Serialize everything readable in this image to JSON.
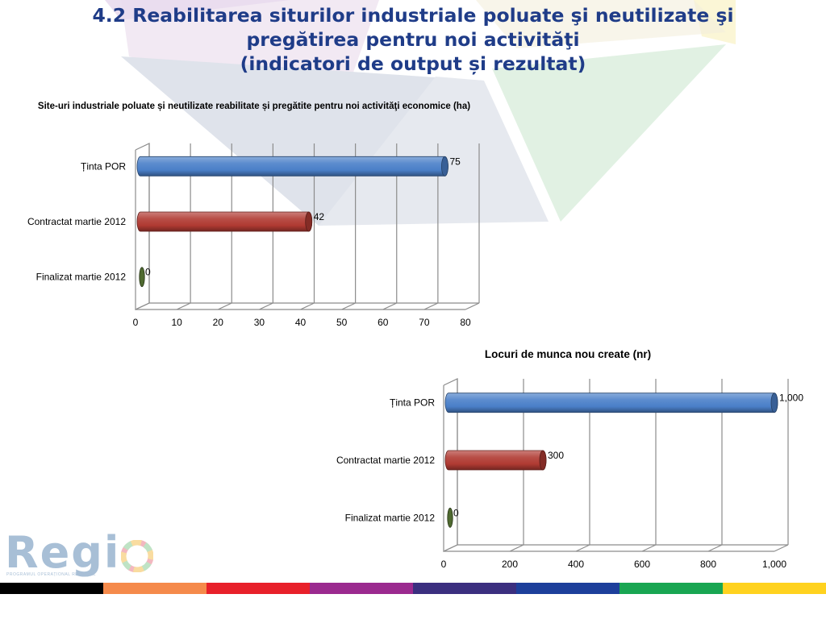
{
  "slide": {
    "title_lines": [
      "4.2 Reabilitarea siturilor industriale poluate şi neutilizate şi",
      "pregătirea pentru noi activităţi",
      "(indicatori de output și rezultat)"
    ]
  },
  "logo": {
    "text": "Regi",
    "subtitle": "PROGRAMUL OPERAȚIONAL REGIONAL"
  },
  "strip_colors": [
    "#000000",
    "#f58a4b",
    "#e8202a",
    "#9b2a8f",
    "#3b2f7f",
    "#1d3f9b",
    "#19a652",
    "#ffd21f"
  ],
  "chart_data": [
    {
      "type": "bar",
      "orientation": "horizontal",
      "title": "Site-uri industriale poluate și neutilizate reabilitate și pregătite pentru noi activităţi economice (ha)",
      "categories": [
        "Ținta POR",
        "Contractat martie 2012",
        "Finalizat martie 2012"
      ],
      "values": [
        75,
        42,
        0
      ],
      "value_labels": [
        "75",
        "42",
        "0"
      ],
      "colors": [
        "#4a7fc8",
        "#b03a32",
        "#4f6a30"
      ],
      "xlim": [
        0,
        80
      ],
      "ticks": [
        0,
        10,
        20,
        30,
        40,
        50,
        60,
        70,
        80
      ],
      "tick_labels": [
        "0",
        "10",
        "20",
        "30",
        "40",
        "50",
        "60",
        "70",
        "80"
      ],
      "grid": true
    },
    {
      "type": "bar",
      "orientation": "horizontal",
      "title": "Locuri de  munca nou create (nr)",
      "categories": [
        "Ținta POR",
        "Contractat martie 2012",
        "Finalizat martie 2012"
      ],
      "values": [
        1000,
        300,
        0
      ],
      "value_labels": [
        "1,000",
        "300",
        "0"
      ],
      "colors": [
        "#4a7fc8",
        "#b03a32",
        "#4f6a30"
      ],
      "xlim": [
        0,
        1000
      ],
      "ticks": [
        0,
        200,
        400,
        600,
        800,
        1000
      ],
      "tick_labels": [
        "0",
        "200",
        "400",
        "600",
        "800",
        "1,000"
      ],
      "grid": true
    }
  ]
}
